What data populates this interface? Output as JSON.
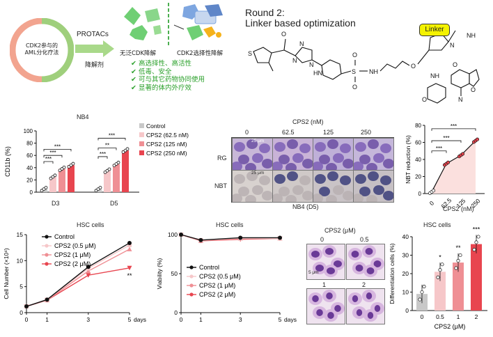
{
  "header": {
    "circle_text_line1": "CDK2参与的",
    "circle_text_line2": "AML分化疗法",
    "arrow_label_top": "PROTACs",
    "arrow_label_bottom": "降解剂",
    "pan_label": "无泛CDK降解",
    "selective_label": "CDK2选择性降解",
    "benefits": [
      "高选择性、高活性",
      "低毒、安全",
      "可与其它药物协同使用",
      "显著的体内外疗效"
    ],
    "round_title": "Round 2:",
    "round_subtitle": "Linker based optimization",
    "linker_label": "Linker",
    "colors": {
      "circle_pink": "#f2a48f",
      "circle_green": "#9fcf7c",
      "benefit_green": "#2aa02a",
      "linker_yellow": "#f4f200"
    }
  },
  "nb4": {
    "title": "NB4",
    "ylabel": "CD11b (%)",
    "groups": [
      "D3",
      "D5"
    ],
    "legend": [
      "Control",
      "CPS2 (62.5 nM)",
      "CPS2 (125 nM)",
      "CPS2 (250 nM)"
    ],
    "sig": [
      "***",
      "***",
      "***",
      "***",
      "**",
      "***"
    ],
    "colors": [
      "#c8c8c8",
      "#f6c7c9",
      "#ef8f94",
      "#e8454f"
    ]
  },
  "micro": {
    "header": "CPS2 (nM)",
    "cols": [
      "0",
      "62.5",
      "125",
      "250"
    ],
    "rows": [
      "RG",
      "NBT"
    ],
    "scale": "25 μm",
    "footer": "NB4 (D5)"
  },
  "nbt": {
    "ylabel": "NBT reduction (%)",
    "xlabel": "CPS2 (nM)",
    "xticks": [
      "0",
      "62.5",
      "125",
      "250"
    ],
    "sig": [
      "***",
      "***",
      "***"
    ]
  },
  "hsc_growth": {
    "title": "HSC cells",
    "ylabel": "Cell Number (×10⁴)",
    "xlabel": "days",
    "legend": [
      "Control",
      "CPS2 (0.5 μM)",
      "CPS2 (1 μM)",
      "CPS2 (2 μM)"
    ],
    "sig": "**"
  },
  "hsc_viability": {
    "title": "HSC cells",
    "ylabel": "Viability (%)",
    "xlabel": "days",
    "legend": [
      "Control",
      "CPS2 (0.5 μM)",
      "CPS2 (1 μM)",
      "CPS2 (2 μM)"
    ]
  },
  "hsc_micro": {
    "header": "CPS2 (μM)",
    "labels": [
      "0",
      "0.5",
      "1",
      "2"
    ],
    "scale": "5 μm"
  },
  "hsc_diff": {
    "title": "HSC cells",
    "ylabel": "Differentiation cells (%)",
    "xlabel": "CPS2 (μM)",
    "sig": [
      "*",
      "**",
      "***"
    ]
  },
  "chart_data": [
    {
      "type": "bar",
      "title": "NB4",
      "ylabel": "CD11b (%)",
      "categories": [
        "D3",
        "D5"
      ],
      "ylim": [
        0,
        100
      ],
      "yticks": [
        0,
        20,
        40,
        60,
        80,
        100
      ],
      "series": [
        {
          "name": "Control",
          "values": [
            5,
            5
          ]
        },
        {
          "name": "CPS2 (62.5 nM)",
          "values": [
            25,
            35
          ]
        },
        {
          "name": "CPS2 (125 nM)",
          "values": [
            38,
            46
          ]
        },
        {
          "name": "CPS2 (250 nM)",
          "values": [
            44,
            68
          ]
        }
      ],
      "legend_position": "right"
    },
    {
      "type": "line",
      "ylabel": "NBT reduction (%)",
      "xlabel": "CPS2 (nM)",
      "categories": [
        "0",
        "62.5",
        "125",
        "250"
      ],
      "values": [
        2,
        35,
        45,
        62
      ],
      "ylim": [
        0,
        80
      ],
      "yticks": [
        0,
        20,
        40,
        60,
        80
      ]
    },
    {
      "type": "line",
      "title": "HSC cells",
      "ylabel": "Cell Number (×10⁴)",
      "xlabel": "days",
      "x": [
        0,
        1,
        3,
        5
      ],
      "ylim": [
        0,
        15
      ],
      "yticks": [
        0,
        5,
        10,
        15
      ],
      "series": [
        {
          "name": "Control",
          "values": [
            1.2,
            2.5,
            8.8,
            13.4
          ]
        },
        {
          "name": "CPS2 (0.5 μM)",
          "values": [
            1.2,
            2.5,
            8.5,
            13.0
          ]
        },
        {
          "name": "CPS2 (1 μM)",
          "values": [
            1.2,
            2.4,
            8.0,
            12.2
          ]
        },
        {
          "name": "CPS2 (2 μM)",
          "values": [
            1.2,
            2.4,
            7.2,
            8.6
          ]
        }
      ]
    },
    {
      "type": "line",
      "title": "HSC cells",
      "ylabel": "Viability (%)",
      "xlabel": "days",
      "x": [
        0,
        1,
        3,
        5
      ],
      "ylim": [
        0,
        100
      ],
      "yticks": [
        0,
        50,
        100
      ],
      "series": [
        {
          "name": "Control",
          "values": [
            100,
            93,
            96,
            96
          ]
        },
        {
          "name": "CPS2 (0.5 μM)",
          "values": [
            100,
            93,
            95,
            95
          ]
        },
        {
          "name": "CPS2 (1 μM)",
          "values": [
            100,
            92,
            95,
            95
          ]
        },
        {
          "name": "CPS2 (2 μM)",
          "values": [
            100,
            92,
            94,
            95
          ]
        }
      ]
    },
    {
      "type": "bar",
      "title": "HSC cells",
      "ylabel": "Differentiation cells (%)",
      "xlabel": "CPS2 (μM)",
      "categories": [
        "0",
        "0.5",
        "1",
        "2"
      ],
      "values": [
        9,
        21,
        26,
        36
      ],
      "ylim": [
        0,
        40
      ],
      "yticks": [
        0,
        10,
        20,
        30,
        40
      ]
    }
  ]
}
